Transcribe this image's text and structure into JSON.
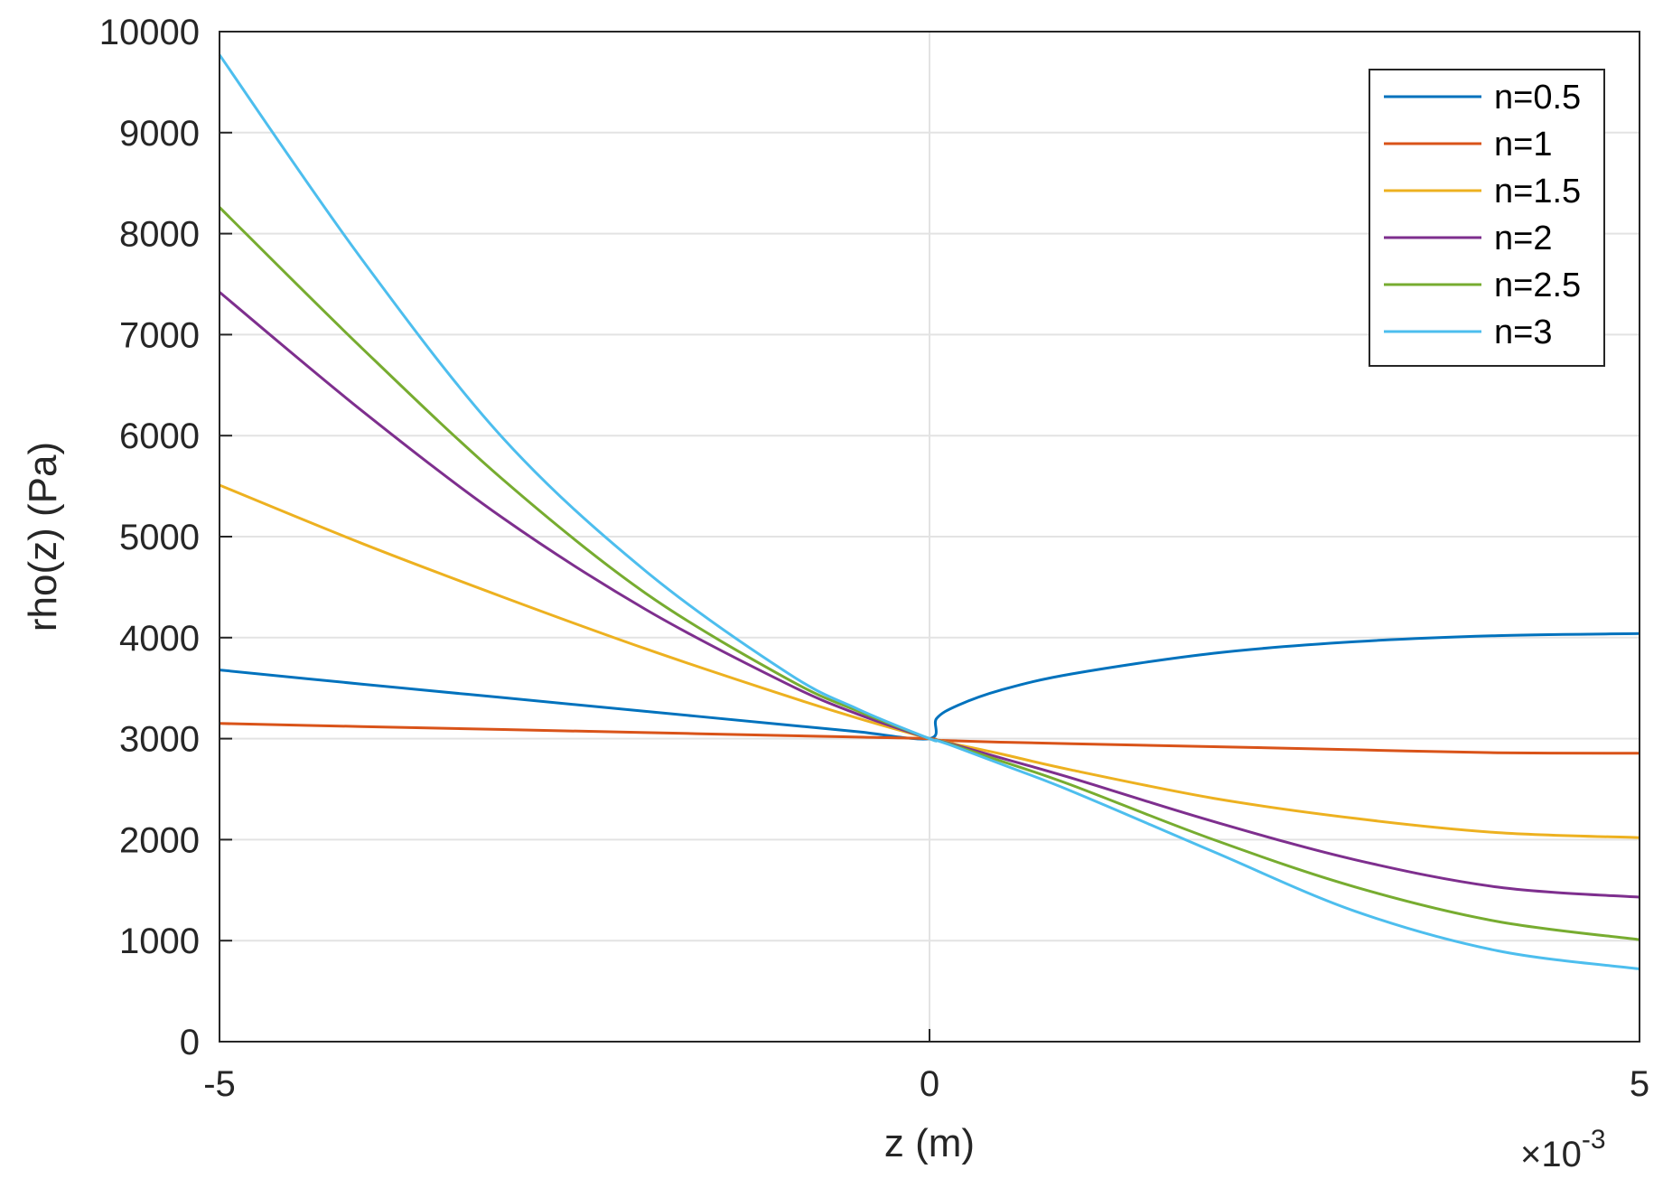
{
  "chart_data": {
    "type": "line",
    "title": "",
    "xlabel": "z (m)",
    "ylabel": "rho(z) (Pa)",
    "x_exponent_label": "×10",
    "x_exponent_power": "-3",
    "xlim": [
      -0.005,
      0.005
    ],
    "ylim": [
      0,
      10000
    ],
    "x_ticks": [
      -0.005,
      0,
      0.005
    ],
    "x_tick_labels": [
      "-5",
      "0",
      "5"
    ],
    "y_ticks": [
      0,
      1000,
      2000,
      3000,
      4000,
      5000,
      6000,
      7000,
      8000,
      9000,
      10000
    ],
    "y_tick_labels": [
      "0",
      "1000",
      "2000",
      "3000",
      "4000",
      "5000",
      "6000",
      "7000",
      "8000",
      "9000",
      "10000"
    ],
    "grid": true,
    "legend_position": "top-right",
    "x": [
      -0.005,
      -0.004,
      -0.003,
      -0.002,
      -0.001,
      -0.0005,
      0,
      5e-05,
      0.0002,
      0.0005,
      0.001,
      0.002,
      0.003,
      0.004,
      0.005
    ],
    "series": [
      {
        "name": "n=0.5",
        "color": "#0072BD",
        "values": [
          3680,
          3540,
          3405,
          3270,
          3135,
          3068,
          3000,
          3200,
          3330,
          3480,
          3640,
          3845,
          3960,
          4020,
          4040
        ]
      },
      {
        "name": "n=1",
        "color": "#D95319",
        "values": [
          3150,
          3120,
          3090,
          3060,
          3030,
          3015,
          3000,
          2985,
          2978,
          2965,
          2950,
          2920,
          2890,
          2860,
          2855
        ]
      },
      {
        "name": "n=1.5",
        "color": "#EDB120",
        "values": [
          5510,
          4935,
          4400,
          3890,
          3420,
          3200,
          3000,
          2988,
          2940,
          2850,
          2690,
          2410,
          2210,
          2070,
          2020
        ]
      },
      {
        "name": "n=2",
        "color": "#7E2F8E",
        "values": [
          7420,
          6250,
          5180,
          4280,
          3540,
          3240,
          3000,
          2986,
          2930,
          2810,
          2610,
          2180,
          1800,
          1530,
          1430
        ]
      },
      {
        "name": "n=2.5",
        "color": "#77AC30",
        "values": [
          8260,
          6870,
          5560,
          4440,
          3590,
          3270,
          3000,
          2984,
          2920,
          2780,
          2540,
          2000,
          1530,
          1190,
          1010
        ]
      },
      {
        "name": "n=3",
        "color": "#4DBEEE",
        "values": [
          9770,
          7750,
          5970,
          4660,
          3650,
          3290,
          3000,
          2982,
          2910,
          2750,
          2480,
          1880,
          1290,
          900,
          720
        ]
      }
    ]
  }
}
